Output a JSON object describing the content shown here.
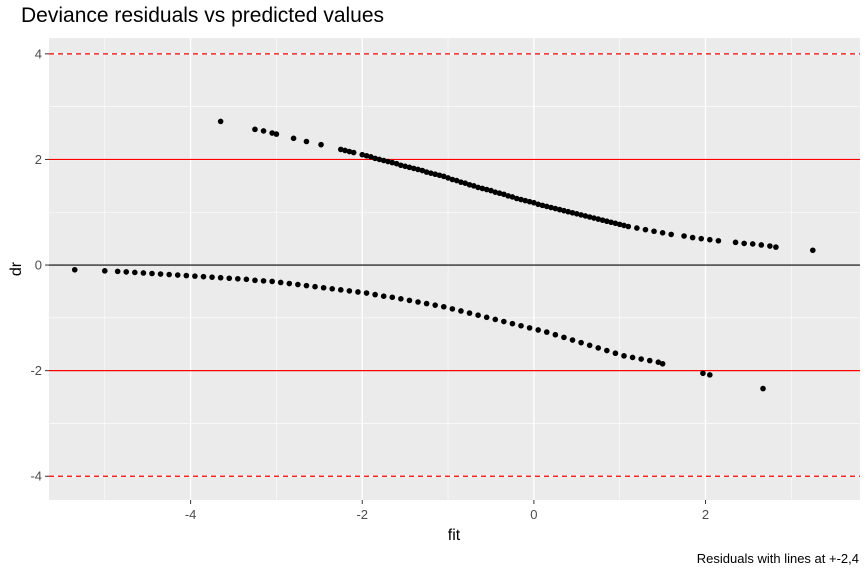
{
  "chart_data": {
    "type": "scatter",
    "title": "Deviance residuals vs predicted values",
    "xlabel": "fit",
    "ylabel": "dr",
    "caption": "Residuals with lines at +-2,4",
    "xlim": [
      -5.65,
      3.8
    ],
    "ylim": [
      -4.45,
      4.3
    ],
    "x_ticks": [
      -4,
      -2,
      0,
      2
    ],
    "y_ticks": [
      -4,
      -2,
      0,
      2,
      4
    ],
    "grid": true,
    "reference_lines": [
      {
        "y": 4,
        "color": "#ff0000",
        "style": "dashed"
      },
      {
        "y": 2,
        "color": "#ff0000",
        "style": "solid"
      },
      {
        "y": 0,
        "color": "#000000",
        "style": "solid"
      },
      {
        "y": -2,
        "color": "#ff0000",
        "style": "solid"
      },
      {
        "y": -4,
        "color": "#ff0000",
        "style": "dashed"
      }
    ],
    "series": [
      {
        "x": [
          -3.65,
          -3.25,
          -3.15,
          -3.05,
          -3.0,
          -2.8,
          -2.65,
          -2.48,
          -2.25,
          -2.2,
          -2.15,
          -2.1,
          -2.0,
          -1.95,
          -1.9,
          -1.85,
          -1.8,
          -1.75,
          -1.7,
          -1.65,
          -1.6,
          -1.55,
          -1.5,
          -1.45,
          -1.4,
          -1.35,
          -1.3,
          -1.25,
          -1.2,
          -1.15,
          -1.1,
          -1.05,
          -1.0,
          -0.95,
          -0.9,
          -0.85,
          -0.8,
          -0.75,
          -0.7,
          -0.65,
          -0.6,
          -0.55,
          -0.5,
          -0.45,
          -0.4,
          -0.35,
          -0.3,
          -0.25,
          -0.2,
          -0.15,
          -0.1,
          -0.05,
          0.0,
          0.05,
          0.1,
          0.15,
          0.2,
          0.25,
          0.3,
          0.35,
          0.4,
          0.45,
          0.5,
          0.55,
          0.6,
          0.65,
          0.7,
          0.75,
          0.8,
          0.85,
          0.9,
          0.95,
          1.0,
          1.05,
          1.1,
          1.2,
          1.3,
          1.4,
          1.5,
          1.6,
          1.75,
          1.85,
          1.95,
          2.05,
          2.15,
          2.35,
          2.45,
          2.55,
          2.65,
          2.75,
          2.82,
          3.25
        ],
        "y": [
          2.72,
          2.57,
          2.54,
          2.5,
          2.48,
          2.4,
          2.34,
          2.28,
          2.19,
          2.17,
          2.15,
          2.13,
          2.09,
          2.07,
          2.05,
          2.02,
          2.0,
          1.98,
          1.96,
          1.94,
          1.92,
          1.89,
          1.87,
          1.85,
          1.83,
          1.81,
          1.79,
          1.76,
          1.74,
          1.72,
          1.7,
          1.68,
          1.65,
          1.62,
          1.6,
          1.57,
          1.55,
          1.52,
          1.5,
          1.47,
          1.45,
          1.43,
          1.41,
          1.38,
          1.36,
          1.34,
          1.31,
          1.29,
          1.26,
          1.24,
          1.22,
          1.2,
          1.18,
          1.15,
          1.13,
          1.11,
          1.09,
          1.07,
          1.05,
          1.03,
          1.01,
          0.99,
          0.97,
          0.95,
          0.93,
          0.91,
          0.89,
          0.87,
          0.85,
          0.83,
          0.81,
          0.79,
          0.77,
          0.75,
          0.73,
          0.7,
          0.67,
          0.64,
          0.61,
          0.58,
          0.55,
          0.52,
          0.5,
          0.48,
          0.46,
          0.43,
          0.41,
          0.4,
          0.38,
          0.36,
          0.34,
          0.28
        ]
      },
      {
        "x": [
          -5.35,
          -5.0,
          -4.85,
          -4.75,
          -4.65,
          -4.55,
          -4.45,
          -4.35,
          -4.25,
          -4.15,
          -4.05,
          -3.95,
          -3.85,
          -3.75,
          -3.65,
          -3.55,
          -3.45,
          -3.35,
          -3.25,
          -3.15,
          -3.05,
          -2.95,
          -2.85,
          -2.75,
          -2.65,
          -2.55,
          -2.45,
          -2.35,
          -2.25,
          -2.15,
          -2.05,
          -1.95,
          -1.85,
          -1.75,
          -1.65,
          -1.55,
          -1.45,
          -1.35,
          -1.25,
          -1.15,
          -1.05,
          -0.95,
          -0.85,
          -0.75,
          -0.65,
          -0.55,
          -0.45,
          -0.35,
          -0.25,
          -0.15,
          -0.05,
          0.05,
          0.15,
          0.25,
          0.35,
          0.45,
          0.55,
          0.65,
          0.75,
          0.85,
          0.95,
          1.05,
          1.15,
          1.25,
          1.35,
          1.45,
          1.5,
          1.97,
          2.05,
          2.67
        ],
        "y": [
          -0.09,
          -0.11,
          -0.12,
          -0.13,
          -0.14,
          -0.15,
          -0.16,
          -0.17,
          -0.18,
          -0.19,
          -0.2,
          -0.21,
          -0.22,
          -0.23,
          -0.24,
          -0.25,
          -0.26,
          -0.27,
          -0.29,
          -0.3,
          -0.31,
          -0.33,
          -0.35,
          -0.37,
          -0.39,
          -0.41,
          -0.43,
          -0.45,
          -0.47,
          -0.49,
          -0.51,
          -0.53,
          -0.56,
          -0.59,
          -0.61,
          -0.64,
          -0.67,
          -0.7,
          -0.73,
          -0.76,
          -0.79,
          -0.83,
          -0.87,
          -0.91,
          -0.95,
          -0.99,
          -1.03,
          -1.07,
          -1.11,
          -1.15,
          -1.19,
          -1.23,
          -1.27,
          -1.32,
          -1.37,
          -1.42,
          -1.47,
          -1.52,
          -1.57,
          -1.62,
          -1.67,
          -1.72,
          -1.75,
          -1.78,
          -1.81,
          -1.84,
          -1.87,
          -2.05,
          -2.08,
          -2.34
        ]
      }
    ]
  }
}
